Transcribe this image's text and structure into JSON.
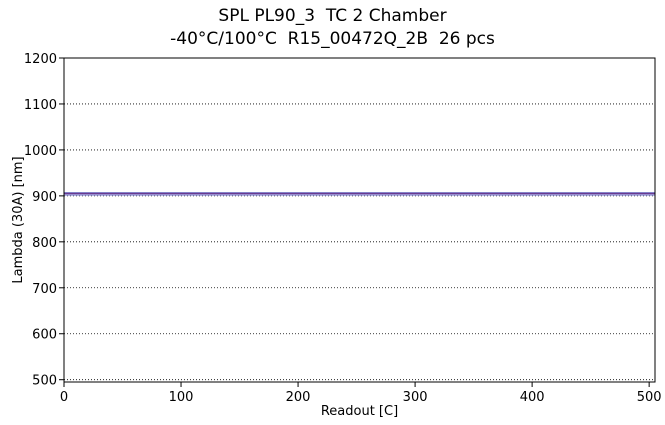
{
  "chart_data": {
    "type": "line",
    "title": "SPL PL90_3  TC 2 Chamber",
    "subtitle": "-40°C/100°C  R15_00472Q_2B  26 pcs",
    "xlabel": "Readout [C]",
    "ylabel": "Lambda (30A) [nm]",
    "xlim": [
      0,
      505
    ],
    "ylim": [
      495,
      1200
    ],
    "xticks": [
      0,
      100,
      200,
      300,
      400,
      500
    ],
    "yticks": [
      500,
      600,
      700,
      800,
      900,
      1000,
      1100,
      1200
    ],
    "grid": "horizontal-dotted",
    "series": [
      {
        "values_x": [
          0,
          505
        ],
        "values_y": [
          906,
          906
        ],
        "color": "#3a3aa8"
      },
      {
        "values_x": [
          0,
          505
        ],
        "values_y": [
          904,
          904
        ],
        "color": "#7a3a8a"
      },
      {
        "values_x": [
          0,
          505
        ],
        "values_y": [
          902,
          902
        ],
        "color": "#9a9ad8"
      }
    ]
  }
}
